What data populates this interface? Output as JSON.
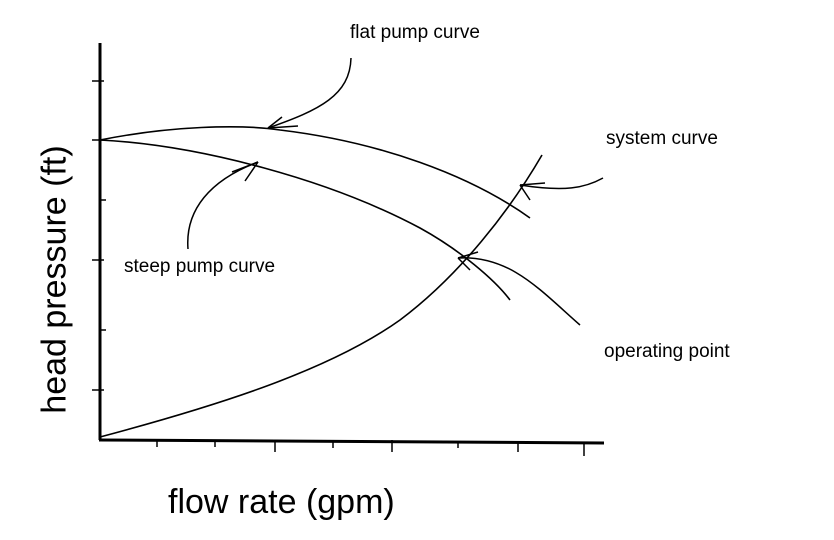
{
  "labels": {
    "flat_pump_curve": "flat pump curve",
    "steep_pump_curve": "steep pump curve",
    "system_curve": "system curve",
    "operating_point": "operating point"
  },
  "axes": {
    "y_label": "head pressure (ft)",
    "x_label": "flow rate (gpm)"
  }
}
